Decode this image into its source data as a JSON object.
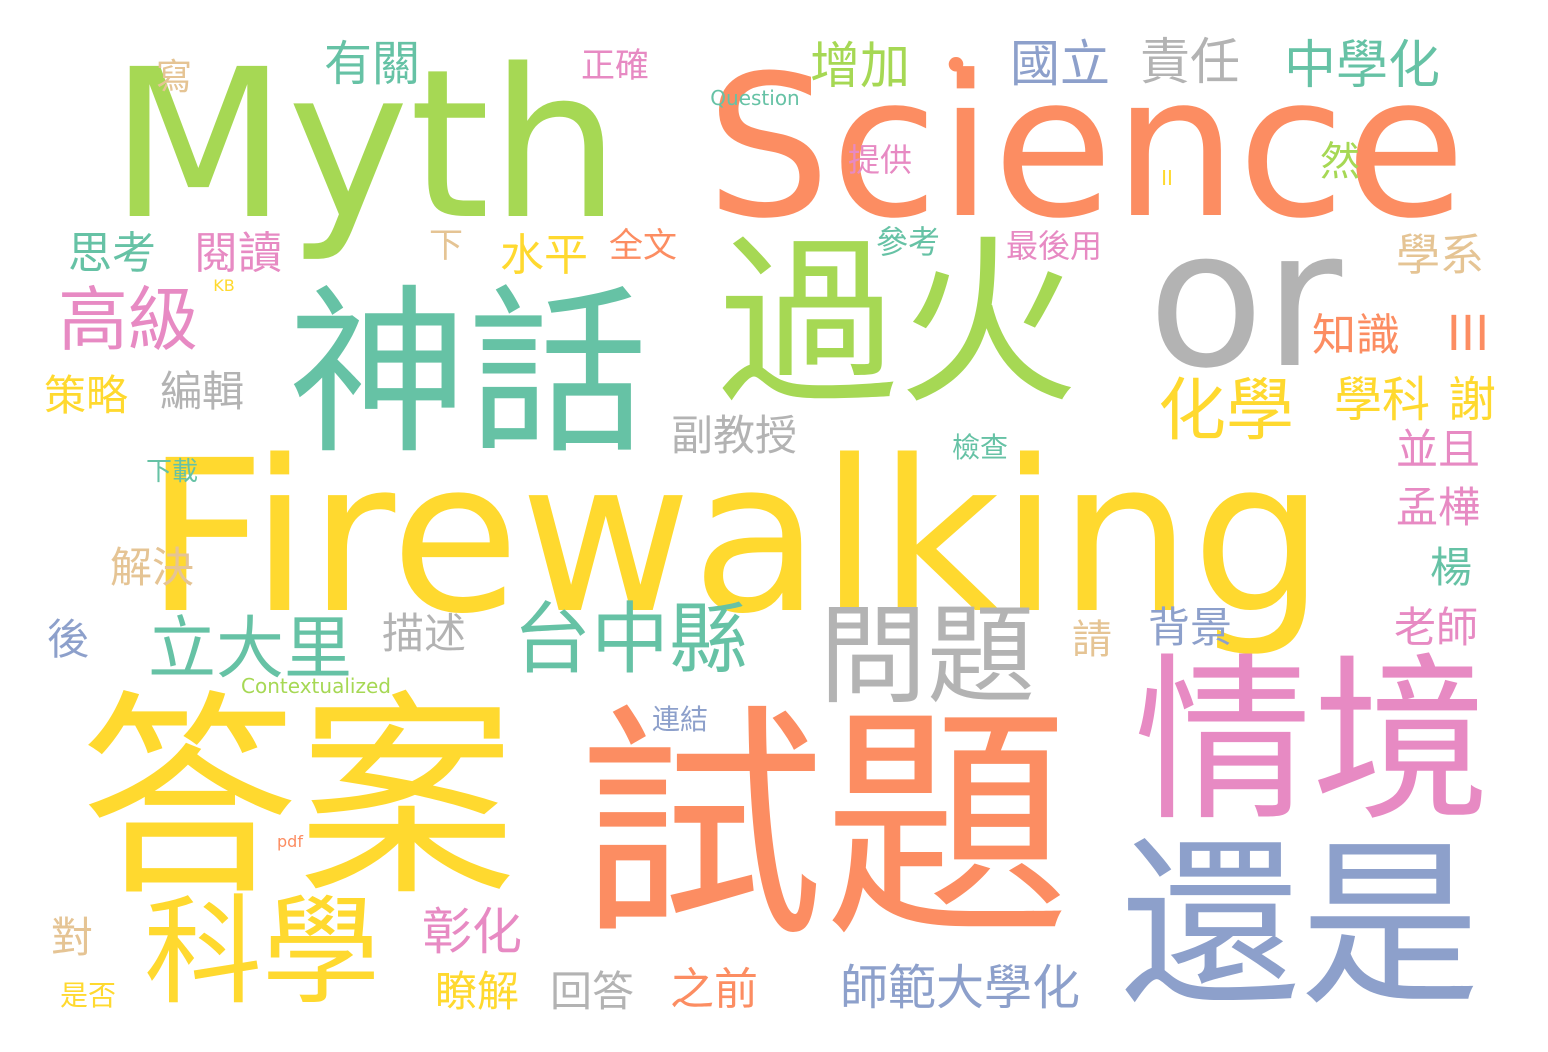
{
  "palette": {
    "green": "#a6d854",
    "orange": "#fc8d62",
    "gray": "#b3b3b3",
    "yellow": "#ffd92f",
    "teal": "#66c2a5",
    "pink": "#e78ac3",
    "blue": "#8da0cb",
    "tan": "#e5c494"
  },
  "words": [
    {
      "text": "Myth",
      "color": "green"
    },
    {
      "text": "Science",
      "color": "orange"
    },
    {
      "text": "or",
      "color": "gray"
    },
    {
      "text": "Firewalking",
      "color": "yellow"
    },
    {
      "text": "神話",
      "color": "teal"
    },
    {
      "text": "過火",
      "color": "green"
    },
    {
      "text": "答案",
      "color": "yellow"
    },
    {
      "text": "試題",
      "color": "orange"
    },
    {
      "text": "情境",
      "color": "pink"
    },
    {
      "text": "還是",
      "color": "blue"
    },
    {
      "text": "科學",
      "color": "yellow"
    },
    {
      "text": "問題",
      "color": "gray"
    },
    {
      "text": "台中縣",
      "color": "teal"
    },
    {
      "text": "立大里",
      "color": "teal"
    },
    {
      "text": "高級",
      "color": "pink"
    },
    {
      "text": "化學",
      "color": "yellow"
    },
    {
      "text": "學科",
      "color": "yellow"
    },
    {
      "text": "謝",
      "color": "yellow"
    },
    {
      "text": "有關",
      "color": "teal"
    },
    {
      "text": "寫",
      "color": "tan"
    },
    {
      "text": "正確",
      "color": "pink"
    },
    {
      "text": "Question",
      "color": "teal"
    },
    {
      "text": "增加",
      "color": "green"
    },
    {
      "text": "•",
      "color": "orange"
    },
    {
      "text": "國立",
      "color": "blue"
    },
    {
      "text": "責任",
      "color": "gray"
    },
    {
      "text": "中學化",
      "color": "teal"
    },
    {
      "text": "提供",
      "color": "pink"
    },
    {
      "text": "II",
      "color": "yellow"
    },
    {
      "text": "然",
      "color": "green"
    },
    {
      "text": "思考",
      "color": "teal"
    },
    {
      "text": "閱讀",
      "color": "pink"
    },
    {
      "text": "下",
      "color": "tan"
    },
    {
      "text": "水平",
      "color": "yellow"
    },
    {
      "text": "全文",
      "color": "orange"
    },
    {
      "text": "參考",
      "color": "teal"
    },
    {
      "text": "最後用",
      "color": "pink"
    },
    {
      "text": "學系",
      "color": "tan"
    },
    {
      "text": "KB",
      "color": "yellow"
    },
    {
      "text": "III",
      "color": "orange"
    },
    {
      "text": "知識",
      "color": "orange"
    },
    {
      "text": "策略",
      "color": "yellow"
    },
    {
      "text": "編輯",
      "color": "gray"
    },
    {
      "text": "副教授",
      "color": "gray"
    },
    {
      "text": "下載",
      "color": "teal"
    },
    {
      "text": "檢查",
      "color": "teal"
    },
    {
      "text": "並且",
      "color": "pink"
    },
    {
      "text": "孟樺",
      "color": "pink"
    },
    {
      "text": "解決",
      "color": "tan"
    },
    {
      "text": "楊",
      "color": "teal"
    },
    {
      "text": "後",
      "color": "blue"
    },
    {
      "text": "描述",
      "color": "gray"
    },
    {
      "text": "請",
      "color": "tan"
    },
    {
      "text": "背景",
      "color": "blue"
    },
    {
      "text": "老師",
      "color": "pink"
    },
    {
      "text": "Contextualized",
      "color": "green"
    },
    {
      "text": "連結",
      "color": "blue"
    },
    {
      "text": "pdf",
      "color": "orange"
    },
    {
      "text": "對",
      "color": "tan"
    },
    {
      "text": "彰化",
      "color": "pink"
    },
    {
      "text": "瞭解",
      "color": "yellow"
    },
    {
      "text": "回答",
      "color": "gray"
    },
    {
      "text": "之前",
      "color": "orange"
    },
    {
      "text": "師範大學化",
      "color": "blue"
    },
    {
      "text": "是否",
      "color": "yellow"
    }
  ]
}
